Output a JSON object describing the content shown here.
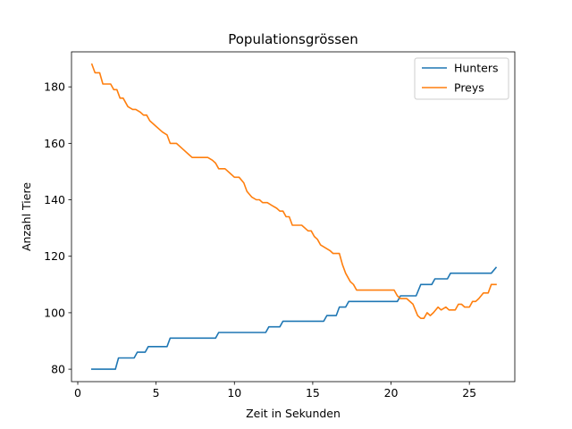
{
  "chart_data": {
    "type": "line",
    "title": "Populationsgrössen",
    "xlabel": "Zeit in Sekunden",
    "ylabel": "Anzahl Tiere",
    "xlim": [
      -0.4,
      27.9
    ],
    "ylim": [
      75.6,
      192.4
    ],
    "xticks": [
      0,
      5,
      10,
      15,
      20,
      25
    ],
    "yticks": [
      80,
      100,
      120,
      140,
      160,
      180
    ],
    "grid": false,
    "legend_position": "top-right",
    "series": [
      {
        "name": "Hunters",
        "color": "#1f77b4",
        "points": [
          [
            0.9,
            80
          ],
          [
            2.4,
            80
          ],
          [
            2.6,
            84
          ],
          [
            3.6,
            84
          ],
          [
            3.8,
            86
          ],
          [
            4.3,
            86
          ],
          [
            4.5,
            88
          ],
          [
            5.7,
            88
          ],
          [
            5.9,
            91
          ],
          [
            8.8,
            91
          ],
          [
            9.0,
            93
          ],
          [
            12.0,
            93
          ],
          [
            12.2,
            95
          ],
          [
            12.9,
            95
          ],
          [
            13.1,
            97
          ],
          [
            15.7,
            97
          ],
          [
            15.9,
            99
          ],
          [
            16.5,
            99
          ],
          [
            16.7,
            102
          ],
          [
            17.1,
            102
          ],
          [
            17.3,
            104
          ],
          [
            20.4,
            104
          ],
          [
            20.6,
            106
          ],
          [
            21.6,
            106
          ],
          [
            21.9,
            110
          ],
          [
            22.6,
            110
          ],
          [
            22.8,
            112
          ],
          [
            23.6,
            112
          ],
          [
            23.8,
            114
          ],
          [
            26.4,
            114
          ],
          [
            26.7,
            116
          ]
        ]
      },
      {
        "name": "Preys",
        "color": "#ff7f0e",
        "points": [
          [
            0.9,
            188
          ],
          [
            1.1,
            185
          ],
          [
            1.4,
            185
          ],
          [
            1.6,
            181
          ],
          [
            2.1,
            181
          ],
          [
            2.3,
            179
          ],
          [
            2.5,
            179
          ],
          [
            2.7,
            176
          ],
          [
            2.9,
            176
          ],
          [
            3.2,
            173
          ],
          [
            3.5,
            172
          ],
          [
            3.7,
            172
          ],
          [
            4.0,
            171
          ],
          [
            4.2,
            170
          ],
          [
            4.4,
            170
          ],
          [
            4.6,
            168
          ],
          [
            5.0,
            166
          ],
          [
            5.4,
            164
          ],
          [
            5.7,
            163
          ],
          [
            5.9,
            160
          ],
          [
            6.3,
            160
          ],
          [
            6.7,
            158
          ],
          [
            7.1,
            156
          ],
          [
            7.3,
            155
          ],
          [
            8.3,
            155
          ],
          [
            8.6,
            154
          ],
          [
            8.8,
            153
          ],
          [
            9.0,
            151
          ],
          [
            9.4,
            151
          ],
          [
            9.8,
            149
          ],
          [
            10.0,
            148
          ],
          [
            10.3,
            148
          ],
          [
            10.6,
            146
          ],
          [
            10.8,
            143
          ],
          [
            11.1,
            141
          ],
          [
            11.4,
            140
          ],
          [
            11.6,
            140
          ],
          [
            11.8,
            139
          ],
          [
            12.1,
            139
          ],
          [
            12.4,
            138
          ],
          [
            12.7,
            137
          ],
          [
            12.9,
            136
          ],
          [
            13.1,
            136
          ],
          [
            13.3,
            134
          ],
          [
            13.5,
            134
          ],
          [
            13.7,
            131
          ],
          [
            14.3,
            131
          ],
          [
            14.7,
            129
          ],
          [
            14.9,
            129
          ],
          [
            15.1,
            127
          ],
          [
            15.3,
            126
          ],
          [
            15.5,
            124
          ],
          [
            16.1,
            122
          ],
          [
            16.3,
            121
          ],
          [
            16.7,
            121
          ],
          [
            16.9,
            117
          ],
          [
            17.1,
            114
          ],
          [
            17.4,
            111
          ],
          [
            17.6,
            110
          ],
          [
            17.8,
            108
          ],
          [
            20.2,
            108
          ],
          [
            20.4,
            106
          ],
          [
            20.6,
            105
          ],
          [
            21.0,
            105
          ],
          [
            21.4,
            103
          ],
          [
            21.7,
            99
          ],
          [
            21.9,
            98
          ],
          [
            22.1,
            98
          ],
          [
            22.3,
            100
          ],
          [
            22.5,
            99
          ],
          [
            22.7,
            100
          ],
          [
            23.0,
            102
          ],
          [
            23.2,
            101
          ],
          [
            23.5,
            102
          ],
          [
            23.7,
            101
          ],
          [
            24.1,
            101
          ],
          [
            24.3,
            103
          ],
          [
            24.5,
            103
          ],
          [
            24.7,
            102
          ],
          [
            25.0,
            102
          ],
          [
            25.2,
            104
          ],
          [
            25.4,
            104
          ],
          [
            25.6,
            105
          ],
          [
            25.9,
            107
          ],
          [
            26.2,
            107
          ],
          [
            26.4,
            110
          ],
          [
            26.7,
            110
          ]
        ]
      }
    ]
  }
}
